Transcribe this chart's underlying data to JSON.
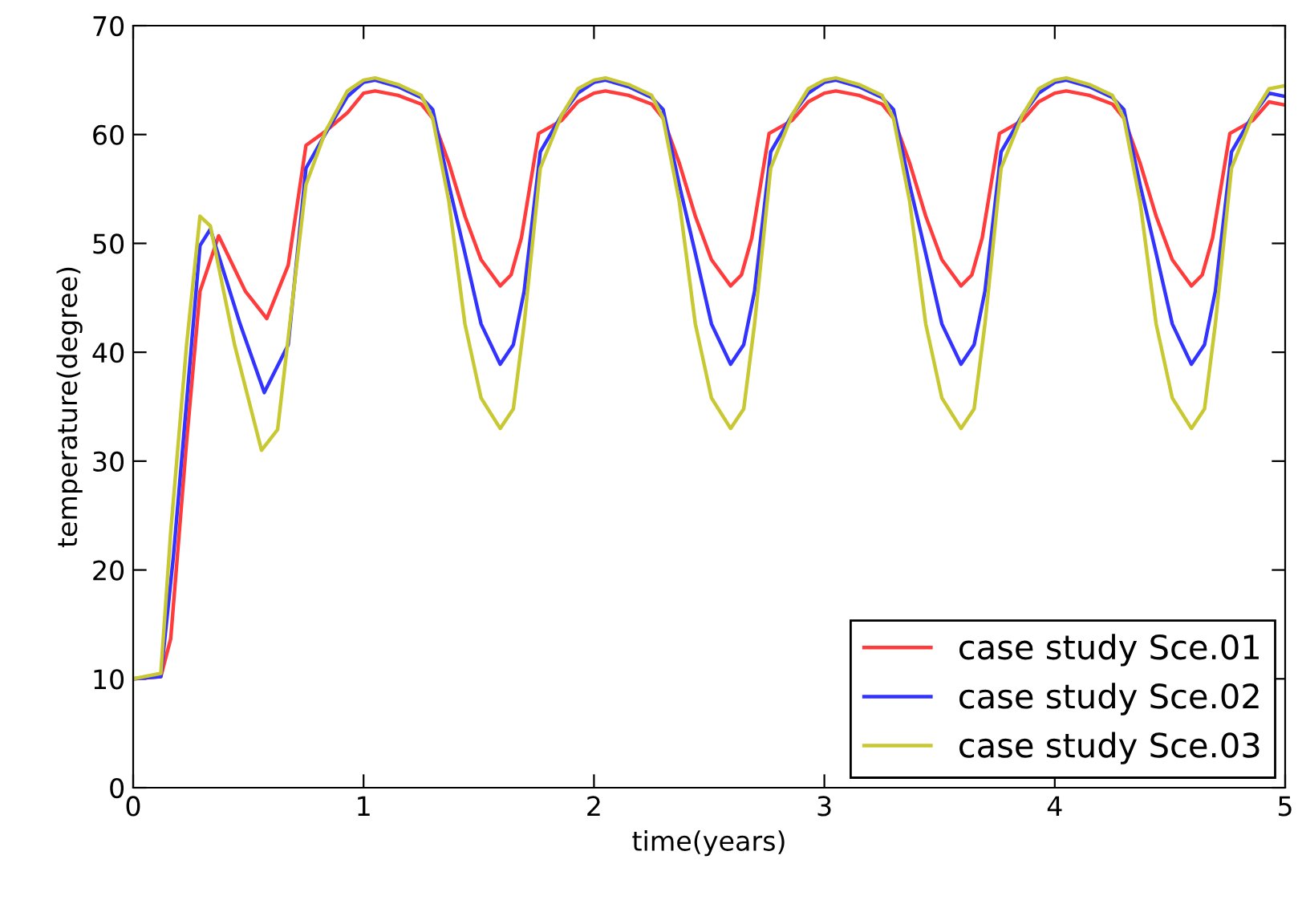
{
  "chart_data": {
    "type": "line",
    "xlabel": "time(years)",
    "ylabel": "temperature(degree)",
    "xlim": [
      0,
      5
    ],
    "ylim": [
      0,
      70
    ],
    "xticks": [
      0,
      1,
      2,
      3,
      4,
      5
    ],
    "yticks": [
      0,
      10,
      20,
      30,
      40,
      50,
      60,
      70
    ],
    "grid": false,
    "legend": "bottom right",
    "marker": "none",
    "line_style": "solid",
    "series": [
      {
        "name": "case study Sce.01",
        "color": "#ff3b3b",
        "x": [
          0,
          0.12,
          0.163,
          0.232,
          0.29,
          0.371,
          0.487,
          0.58,
          0.673,
          0.75,
          0.835,
          0.93,
          1,
          1.05,
          1.15,
          1.25,
          1.3,
          1.37,
          1.44,
          1.51,
          1.593,
          1.64,
          1.685,
          1.76,
          1.86,
          1.93,
          2,
          2.05,
          2.15,
          2.25,
          2.3,
          2.37,
          2.44,
          2.51,
          2.593,
          2.64,
          2.685,
          2.76,
          2.86,
          2.93,
          3,
          3.05,
          3.15,
          3.25,
          3.3,
          3.37,
          3.44,
          3.51,
          3.593,
          3.64,
          3.685,
          3.76,
          3.86,
          3.93,
          4,
          4.05,
          4.15,
          4.25,
          4.3,
          4.37,
          4.44,
          4.51,
          4.593,
          4.64,
          4.685,
          4.76,
          4.86,
          4.93,
          5
        ],
        "values": [
          10,
          10.2,
          13.7,
          31.8,
          45.6,
          50.7,
          45.6,
          43.1,
          48.0,
          59.0,
          60.3,
          62.0,
          63.8,
          64.0,
          63.6,
          62.8,
          61.5,
          57.4,
          52.5,
          48.5,
          46.1,
          47.1,
          50.5,
          60.1,
          61.3,
          63.0,
          63.8,
          64.0,
          63.6,
          62.8,
          61.5,
          57.4,
          52.5,
          48.5,
          46.1,
          47.1,
          50.5,
          60.1,
          61.3,
          63.0,
          63.8,
          64.0,
          63.6,
          62.8,
          61.5,
          57.4,
          52.5,
          48.5,
          46.1,
          47.1,
          50.5,
          60.1,
          61.3,
          63.0,
          63.8,
          64.0,
          63.6,
          62.8,
          61.5,
          57.4,
          52.5,
          48.5,
          46.1,
          47.1,
          50.5,
          60.1,
          61.3,
          63.0,
          62.7
        ]
      },
      {
        "name": "case study Sce.02",
        "color": "#3333ff",
        "x": [
          0,
          0.12,
          0.174,
          0.29,
          0.335,
          0.464,
          0.569,
          0.673,
          0.75,
          0.835,
          0.93,
          1,
          1.05,
          1.15,
          1.25,
          1.3,
          1.37,
          1.44,
          1.51,
          1.593,
          1.65,
          1.697,
          1.767,
          1.86,
          1.93,
          2,
          2.05,
          2.15,
          2.25,
          2.3,
          2.37,
          2.44,
          2.51,
          2.593,
          2.65,
          2.697,
          2.767,
          2.86,
          2.93,
          3,
          3.05,
          3.15,
          3.25,
          3.3,
          3.37,
          3.44,
          3.51,
          3.593,
          3.65,
          3.697,
          3.767,
          3.86,
          3.93,
          4,
          4.05,
          4.15,
          4.25,
          4.3,
          4.37,
          4.44,
          4.51,
          4.593,
          4.65,
          4.697,
          4.767,
          4.86,
          4.93,
          5
        ],
        "values": [
          10,
          10.2,
          21.1,
          49.8,
          51.3,
          42.6,
          36.3,
          40.7,
          56.9,
          60.1,
          63.5,
          64.8,
          65.0,
          64.4,
          63.4,
          62.3,
          55.4,
          49.1,
          42.6,
          38.9,
          40.7,
          45.6,
          58.4,
          61.8,
          63.8,
          64.8,
          65.0,
          64.4,
          63.4,
          62.3,
          55.4,
          49.1,
          42.6,
          38.9,
          40.7,
          45.6,
          58.4,
          61.8,
          63.8,
          64.8,
          65.0,
          64.4,
          63.4,
          62.3,
          55.4,
          49.1,
          42.6,
          38.9,
          40.7,
          45.6,
          58.4,
          61.8,
          63.8,
          64.8,
          65.0,
          64.4,
          63.4,
          62.3,
          55.4,
          49.1,
          42.6,
          38.9,
          40.7,
          45.6,
          58.4,
          61.8,
          63.8,
          63.5
        ]
      },
      {
        "name": "case study Sce.03",
        "color": "#c8c832",
        "x": [
          0,
          0.12,
          0.163,
          0.232,
          0.29,
          0.335,
          0.44,
          0.557,
          0.627,
          0.75,
          0.835,
          0.93,
          1,
          1.05,
          1.15,
          1.25,
          1.3,
          1.37,
          1.44,
          1.51,
          1.593,
          1.65,
          1.697,
          1.767,
          1.86,
          1.93,
          2,
          2.05,
          2.15,
          2.25,
          2.3,
          2.37,
          2.44,
          2.51,
          2.593,
          2.65,
          2.697,
          2.767,
          2.86,
          2.93,
          3,
          3.05,
          3.15,
          3.25,
          3.3,
          3.37,
          3.44,
          3.51,
          3.593,
          3.65,
          3.697,
          3.767,
          3.86,
          3.93,
          4,
          4.05,
          4.15,
          4.25,
          4.3,
          4.37,
          4.44,
          4.51,
          4.593,
          4.65,
          4.697,
          4.767,
          4.86,
          4.93,
          5
        ],
        "values": [
          10,
          10.5,
          23.5,
          40.7,
          52.5,
          51.6,
          40.7,
          31.0,
          32.9,
          55.4,
          60.3,
          64.0,
          65.0,
          65.2,
          64.6,
          63.6,
          61.5,
          53.9,
          42.6,
          35.8,
          33.0,
          34.8,
          42.6,
          56.9,
          61.8,
          64.2,
          65.0,
          65.2,
          64.6,
          63.6,
          61.5,
          53.9,
          42.6,
          35.8,
          33.0,
          34.8,
          42.6,
          56.9,
          61.8,
          64.2,
          65.0,
          65.2,
          64.6,
          63.6,
          61.5,
          53.9,
          42.6,
          35.8,
          33.0,
          34.8,
          42.6,
          56.9,
          61.8,
          64.2,
          65.0,
          65.2,
          64.6,
          63.6,
          61.5,
          53.9,
          42.6,
          35.8,
          33.0,
          34.8,
          42.6,
          56.9,
          61.8,
          64.2,
          64.5
        ]
      }
    ]
  }
}
